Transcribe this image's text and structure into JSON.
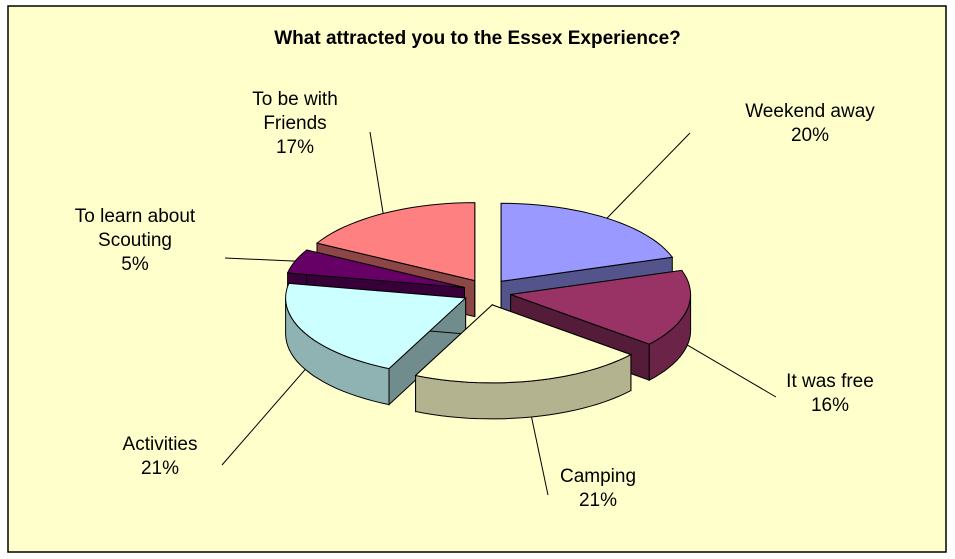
{
  "chart_data": {
    "type": "pie3d",
    "title": "What attracted you to the Essex Experience?",
    "categories": [
      "Weekend away",
      "It was free",
      "Camping",
      "Activities",
      "To learn about Scouting",
      "To be with Friends"
    ],
    "values": [
      20,
      16,
      21,
      21,
      5,
      17
    ],
    "value_labels": [
      "20%",
      "16%",
      "21%",
      "21%",
      "5%",
      "17%"
    ],
    "colors": [
      "#9999ff",
      "#993366",
      "#ffffcc",
      "#ccffff",
      "#660066",
      "#ff8080"
    ]
  }
}
